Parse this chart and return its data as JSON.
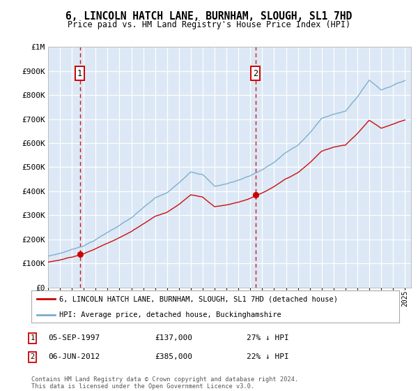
{
  "title": "6, LINCOLN HATCH LANE, BURNHAM, SLOUGH, SL1 7HD",
  "subtitle": "Price paid vs. HM Land Registry's House Price Index (HPI)",
  "legend_line1": "6, LINCOLN HATCH LANE, BURNHAM, SLOUGH, SL1 7HD (detached house)",
  "legend_line2": "HPI: Average price, detached house, Buckinghamshire",
  "annotation1_date": "05-SEP-1997",
  "annotation1_price": "£137,000",
  "annotation1_hpi": "27% ↓ HPI",
  "annotation1_year": 1997.67,
  "annotation1_value": 137000,
  "annotation2_date": "06-JUN-2012",
  "annotation2_price": "£385,000",
  "annotation2_hpi": "22% ↓ HPI",
  "annotation2_year": 2012.43,
  "annotation2_value": 385000,
  "xmin": 1995,
  "xmax": 2025.5,
  "ymin": 0,
  "ymax": 1000000,
  "fig_bg": "#ffffff",
  "plot_bg": "#dce8f5",
  "red_color": "#cc0000",
  "blue_color": "#7aabcc",
  "grid_color": "#ffffff",
  "footnote": "Contains HM Land Registry data © Crown copyright and database right 2024.\nThis data is licensed under the Open Government Licence v3.0."
}
